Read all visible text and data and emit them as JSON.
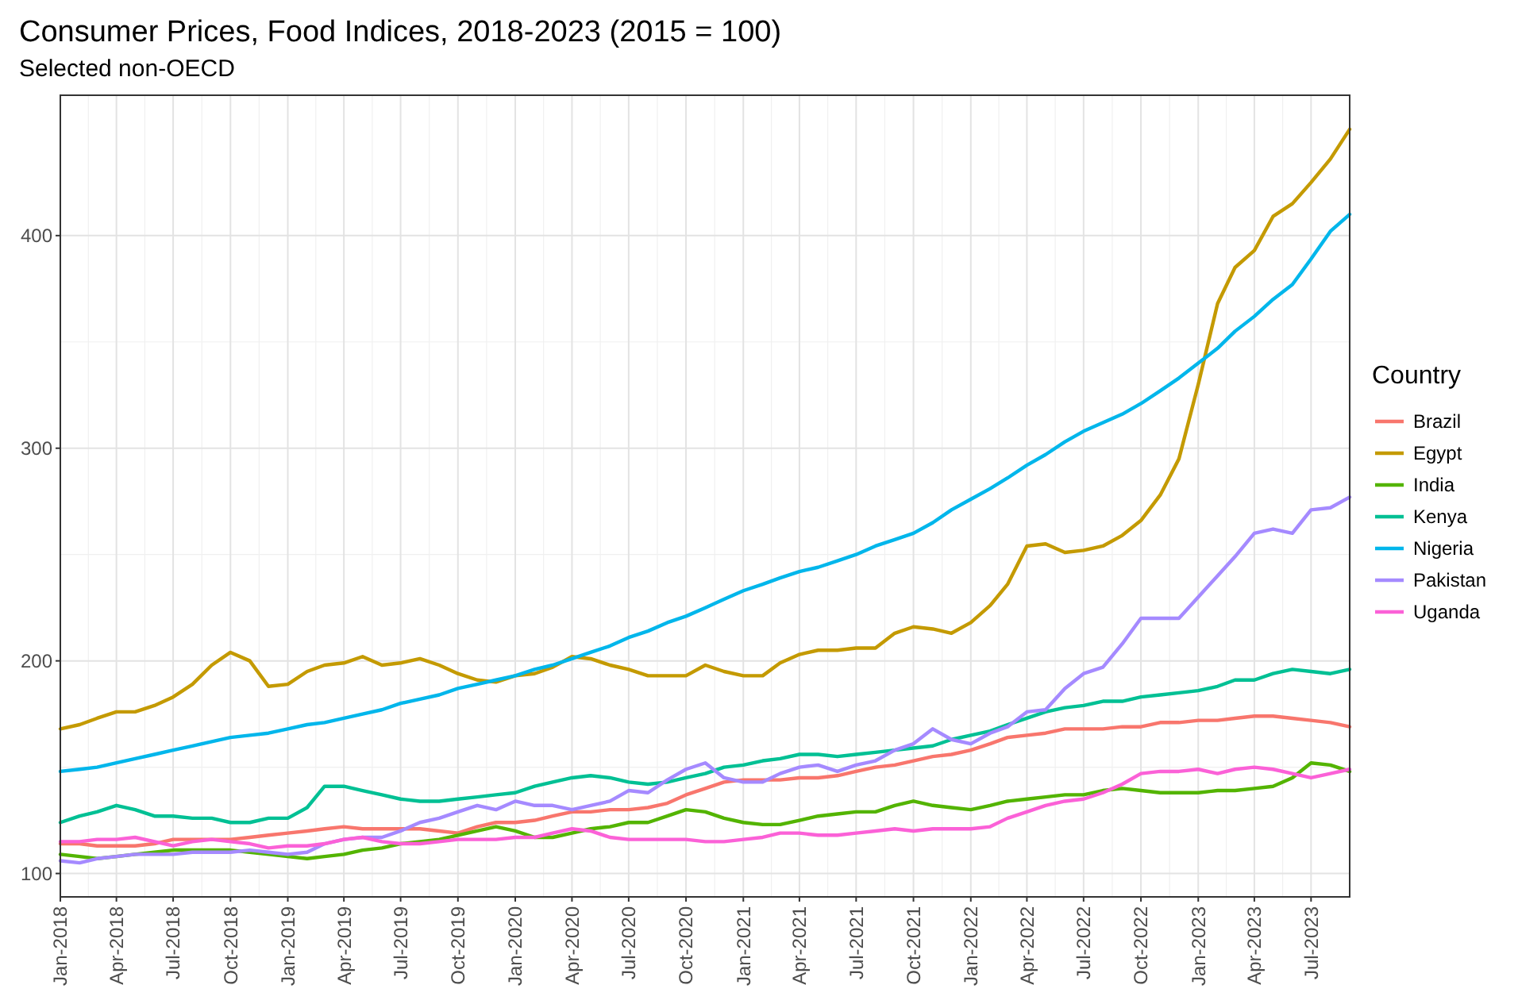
{
  "chart_data": {
    "type": "line",
    "title": "Consumer Prices, Food Indices, 2018-2023 (2015 = 100)",
    "subtitle": "Selected non-OECD",
    "legend_title": "Country",
    "legend": "right",
    "grid": true,
    "line_style": "solid",
    "x": [
      "2018-01",
      "2018-02",
      "2018-03",
      "2018-04",
      "2018-05",
      "2018-06",
      "2018-07",
      "2018-08",
      "2018-09",
      "2018-10",
      "2018-11",
      "2018-12",
      "2019-01",
      "2019-02",
      "2019-03",
      "2019-04",
      "2019-05",
      "2019-06",
      "2019-07",
      "2019-08",
      "2019-09",
      "2019-10",
      "2019-11",
      "2019-12",
      "2020-01",
      "2020-02",
      "2020-03",
      "2020-04",
      "2020-05",
      "2020-06",
      "2020-07",
      "2020-08",
      "2020-09",
      "2020-10",
      "2020-11",
      "2020-12",
      "2021-01",
      "2021-02",
      "2021-03",
      "2021-04",
      "2021-05",
      "2021-06",
      "2021-07",
      "2021-08",
      "2021-09",
      "2021-10",
      "2021-11",
      "2021-12",
      "2022-01",
      "2022-02",
      "2022-03",
      "2022-04",
      "2022-05",
      "2022-06",
      "2022-07",
      "2022-08",
      "2022-09",
      "2022-10",
      "2022-11",
      "2022-12",
      "2023-01",
      "2023-02",
      "2023-03",
      "2023-04",
      "2023-05",
      "2023-06",
      "2023-07",
      "2023-08",
      "2023-09"
    ],
    "xlim": [
      "2018-01",
      "2023-09"
    ],
    "xticks": [
      {
        "value": "2018-01",
        "label": "Jan-2018"
      },
      {
        "value": "2018-04",
        "label": "Apr-2018"
      },
      {
        "value": "2018-07",
        "label": "Jul-2018"
      },
      {
        "value": "2018-10",
        "label": "Oct-2018"
      },
      {
        "value": "2019-01",
        "label": "Jan-2019"
      },
      {
        "value": "2019-04",
        "label": "Apr-2019"
      },
      {
        "value": "2019-07",
        "label": "Jul-2019"
      },
      {
        "value": "2019-10",
        "label": "Oct-2019"
      },
      {
        "value": "2020-01",
        "label": "Jan-2020"
      },
      {
        "value": "2020-04",
        "label": "Apr-2020"
      },
      {
        "value": "2020-07",
        "label": "Jul-2020"
      },
      {
        "value": "2020-10",
        "label": "Oct-2020"
      },
      {
        "value": "2021-01",
        "label": "Jan-2021"
      },
      {
        "value": "2021-04",
        "label": "Apr-2021"
      },
      {
        "value": "2021-07",
        "label": "Jul-2021"
      },
      {
        "value": "2021-10",
        "label": "Oct-2021"
      },
      {
        "value": "2022-01",
        "label": "Jan-2022"
      },
      {
        "value": "2022-04",
        "label": "Apr-2022"
      },
      {
        "value": "2022-07",
        "label": "Jul-2022"
      },
      {
        "value": "2022-10",
        "label": "Oct-2022"
      },
      {
        "value": "2023-01",
        "label": "Jan-2023"
      },
      {
        "value": "2023-04",
        "label": "Apr-2023"
      },
      {
        "value": "2023-07",
        "label": "Jul-2023"
      }
    ],
    "ylim": [
      89,
      466
    ],
    "yticks": [
      100,
      200,
      300,
      400
    ],
    "series": [
      {
        "name": "Brazil",
        "color": "#f8766d",
        "values": [
          114,
          114,
          113,
          113,
          113,
          114,
          116,
          116,
          116,
          116,
          117,
          118,
          119,
          120,
          121,
          122,
          121,
          121,
          121,
          121,
          120,
          119,
          122,
          124,
          124,
          125,
          127,
          129,
          129,
          130,
          130,
          131,
          133,
          137,
          140,
          143,
          144,
          144,
          144,
          145,
          145,
          146,
          148,
          150,
          151,
          153,
          155,
          156,
          158,
          161,
          164,
          165,
          166,
          168,
          168,
          168,
          169,
          169,
          171,
          171,
          172,
          172,
          173,
          174,
          174,
          173,
          172,
          171,
          169
        ]
      },
      {
        "name": "Egypt",
        "color": "#c49a00",
        "values": [
          168,
          170,
          173,
          176,
          176,
          179,
          183,
          189,
          198,
          204,
          200,
          188,
          189,
          195,
          198,
          199,
          202,
          198,
          199,
          201,
          198,
          194,
          191,
          190,
          193,
          194,
          197,
          202,
          201,
          198,
          196,
          193,
          193,
          193,
          198,
          195,
          193,
          193,
          199,
          203,
          205,
          205,
          206,
          206,
          213,
          216,
          215,
          213,
          218,
          226,
          236,
          254,
          255,
          251,
          252,
          254,
          259,
          266,
          278,
          295,
          330,
          368,
          385,
          393,
          409,
          415,
          425,
          436,
          450
        ]
      },
      {
        "name": "India",
        "color": "#53b400",
        "values": [
          109,
          108,
          107,
          108,
          109,
          110,
          111,
          111,
          111,
          111,
          110,
          109,
          108,
          107,
          108,
          109,
          111,
          112,
          114,
          115,
          116,
          118,
          120,
          122,
          120,
          117,
          117,
          119,
          121,
          122,
          124,
          124,
          127,
          130,
          129,
          126,
          124,
          123,
          123,
          125,
          127,
          128,
          129,
          129,
          132,
          134,
          132,
          131,
          130,
          132,
          134,
          135,
          136,
          137,
          137,
          139,
          140,
          139,
          138,
          138,
          138,
          139,
          139,
          140,
          141,
          145,
          152,
          151,
          148
        ]
      },
      {
        "name": "Kenya",
        "color": "#00c094",
        "values": [
          124,
          127,
          129,
          132,
          130,
          127,
          127,
          126,
          126,
          124,
          124,
          126,
          126,
          131,
          141,
          141,
          139,
          137,
          135,
          134,
          134,
          135,
          136,
          137,
          138,
          141,
          143,
          145,
          146,
          145,
          143,
          142,
          143,
          145,
          147,
          150,
          151,
          153,
          154,
          156,
          156,
          155,
          156,
          157,
          158,
          159,
          160,
          163,
          165,
          167,
          170,
          173,
          176,
          178,
          179,
          181,
          181,
          183,
          184,
          185,
          186,
          188,
          191,
          191,
          194,
          196,
          195,
          194,
          196
        ]
      },
      {
        "name": "Nigeria",
        "color": "#00b6eb",
        "values": [
          148,
          149,
          150,
          152,
          154,
          156,
          158,
          160,
          162,
          164,
          165,
          166,
          168,
          170,
          171,
          173,
          175,
          177,
          180,
          182,
          184,
          187,
          189,
          191,
          193,
          196,
          198,
          201,
          204,
          207,
          211,
          214,
          218,
          221,
          225,
          229,
          233,
          236,
          239,
          242,
          244,
          247,
          250,
          254,
          257,
          260,
          265,
          271,
          276,
          281,
          286,
          292,
          297,
          303,
          308,
          312,
          316,
          321,
          327,
          333,
          340,
          347,
          355,
          362,
          370,
          377,
          389,
          402,
          410
        ]
      },
      {
        "name": "Pakistan",
        "color": "#a58aff",
        "values": [
          106,
          105,
          107,
          108,
          109,
          109,
          109,
          110,
          110,
          110,
          111,
          110,
          109,
          110,
          114,
          116,
          117,
          117,
          120,
          124,
          126,
          129,
          132,
          130,
          134,
          132,
          132,
          130,
          132,
          134,
          139,
          138,
          144,
          149,
          152,
          145,
          143,
          143,
          147,
          150,
          151,
          148,
          151,
          153,
          158,
          161,
          168,
          163,
          161,
          166,
          169,
          176,
          177,
          187,
          194,
          197,
          208,
          220,
          220,
          220,
          230,
          240,
          249,
          260,
          262,
          260,
          271,
          272,
          277
        ]
      },
      {
        "name": "Uganda",
        "color": "#fb61d7",
        "values": [
          115,
          115,
          116,
          116,
          117,
          115,
          113,
          115,
          116,
          115,
          114,
          112,
          113,
          113,
          114,
          116,
          117,
          115,
          114,
          114,
          115,
          116,
          116,
          116,
          117,
          117,
          119,
          121,
          120,
          117,
          116,
          116,
          116,
          116,
          115,
          115,
          116,
          117,
          119,
          119,
          118,
          118,
          119,
          120,
          121,
          120,
          121,
          121,
          121,
          122,
          126,
          129,
          132,
          134,
          135,
          138,
          142,
          147,
          148,
          148,
          149,
          147,
          149,
          150,
          149,
          147,
          145,
          147,
          149
        ]
      }
    ]
  }
}
